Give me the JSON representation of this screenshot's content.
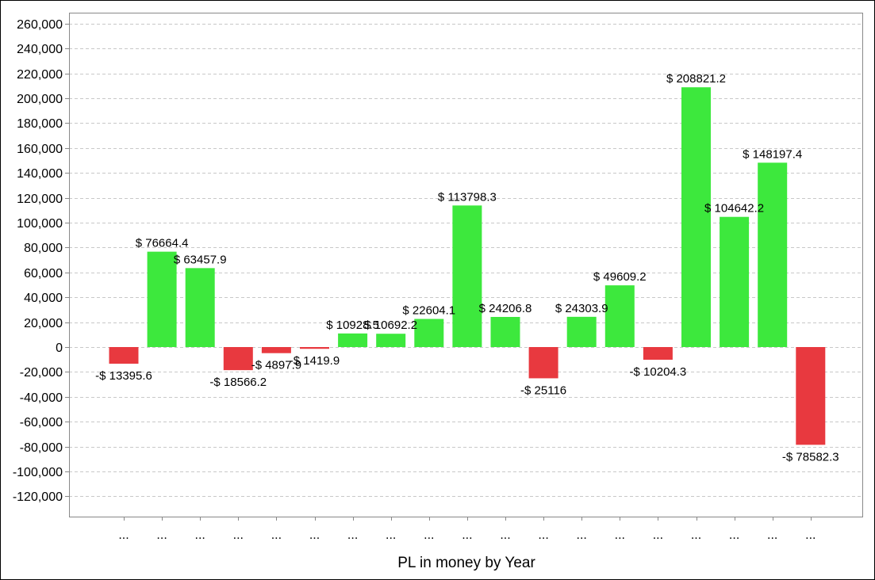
{
  "chart_data": {
    "type": "bar",
    "xlabel": "PL in money by Year",
    "categories": [
      "...",
      "...",
      "...",
      "...",
      "...",
      "...",
      "...",
      "...",
      "...",
      "...",
      "...",
      "...",
      "...",
      "...",
      "...",
      "...",
      "...",
      "...",
      "..."
    ],
    "values": [
      -13395.6,
      76664.4,
      63457.9,
      -18566.2,
      -4897.9,
      -1419.9,
      10928.5,
      10692.2,
      22604.1,
      113798.3,
      24206.8,
      -25116,
      24303.9,
      49609.2,
      -10204.3,
      208821.2,
      104642.2,
      148197.4,
      -78582.3
    ],
    "data_labels": [
      "-$ 13395.6",
      "$ 76664.4",
      "$ 63457.9",
      "-$ 18566.2",
      "-$ 4897.9",
      "-$ 1419.9",
      "$ 10928.5",
      "$ 10692.2",
      "$ 22604.1",
      "$ 113798.3",
      "$ 24206.8",
      "-$ 25116",
      "$ 24303.9",
      "$ 49609.2",
      "-$ 10204.3",
      "$ 208821.2",
      "$ 104642.2",
      "$ 148197.4",
      "-$ 78582.3"
    ],
    "ylim": [
      -135000,
      265000
    ],
    "y_ticks": [
      260000,
      240000,
      220000,
      200000,
      180000,
      160000,
      140000,
      120000,
      100000,
      80000,
      60000,
      40000,
      20000,
      0,
      -20000,
      -40000,
      -60000,
      -80000,
      -100000,
      -120000
    ],
    "y_tick_labels": [
      "260,000",
      "240,000",
      "220,000",
      "200,000",
      "180,000",
      "160,000",
      "140,000",
      "120,000",
      "100,000",
      "80,000",
      "60,000",
      "40,000",
      "20,000",
      "0",
      "-20,000",
      "-40,000",
      "-60,000",
      "-80,000",
      "-100,000",
      "-120,000"
    ],
    "grid": true,
    "colors": {
      "positive": "#3de83d",
      "negative": "#e8393f",
      "grid": "#c8c8c8",
      "axis": "#888888"
    }
  }
}
